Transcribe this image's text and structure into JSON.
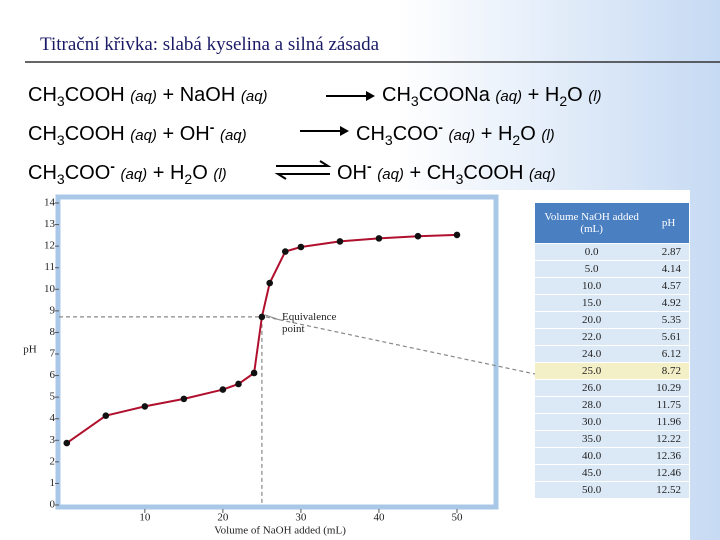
{
  "title": "Titrační křivka: slabá kyselina a silná zásada",
  "equations": [
    {
      "arrow": "single",
      "left": [
        {
          "text": "CH"
        },
        {
          "text": "3",
          "style": "sub"
        },
        {
          "text": "COOH "
        },
        {
          "text": "(aq)",
          "style": "i"
        },
        {
          "text": " + NaOH "
        },
        {
          "text": "(aq)",
          "style": "i"
        }
      ],
      "right": [
        {
          "text": "CH"
        },
        {
          "text": "3",
          "style": "sub"
        },
        {
          "text": "COONa "
        },
        {
          "text": "(aq)",
          "style": "i"
        },
        {
          "text": " + H"
        },
        {
          "text": "2",
          "style": "sub"
        },
        {
          "text": "O "
        },
        {
          "text": "(l)",
          "style": "i"
        }
      ]
    },
    {
      "arrow": "single",
      "left": [
        {
          "text": "CH"
        },
        {
          "text": "3",
          "style": "sub"
        },
        {
          "text": "COOH "
        },
        {
          "text": "(aq)",
          "style": "i"
        },
        {
          "text": " + OH"
        },
        {
          "text": "-",
          "style": "sup"
        },
        {
          "text": " "
        },
        {
          "text": "(aq)",
          "style": "i"
        }
      ],
      "right": [
        {
          "text": "CH"
        },
        {
          "text": "3",
          "style": "sub"
        },
        {
          "text": "COO"
        },
        {
          "text": "-",
          "style": "sup"
        },
        {
          "text": " "
        },
        {
          "text": "(aq)",
          "style": "i"
        },
        {
          "text": " + H"
        },
        {
          "text": "2",
          "style": "sub"
        },
        {
          "text": "O "
        },
        {
          "text": "(l)",
          "style": "i"
        }
      ]
    },
    {
      "arrow": "double",
      "left": [
        {
          "text": "CH"
        },
        {
          "text": "3",
          "style": "sub"
        },
        {
          "text": "COO"
        },
        {
          "text": "-",
          "style": "sup"
        },
        {
          "text": " "
        },
        {
          "text": "(aq)",
          "style": "i"
        },
        {
          "text": " + H"
        },
        {
          "text": "2",
          "style": "sub"
        },
        {
          "text": "O "
        },
        {
          "text": "(l)",
          "style": "i"
        }
      ],
      "right": [
        {
          "text": "OH"
        },
        {
          "text": "-",
          "style": "sup"
        },
        {
          "text": " "
        },
        {
          "text": "(aq)",
          "style": "i"
        },
        {
          "text": " + CH"
        },
        {
          "text": "3",
          "style": "sub"
        },
        {
          "text": "COOH "
        },
        {
          "text": "(aq)",
          "style": "i"
        }
      ]
    }
  ],
  "chart_data": {
    "type": "line",
    "x": [
      0,
      5,
      10,
      15,
      20,
      22,
      24,
      25,
      26,
      28,
      30,
      35,
      40,
      45,
      50
    ],
    "values": [
      2.87,
      4.14,
      4.57,
      4.92,
      5.35,
      5.61,
      6.12,
      8.72,
      10.29,
      11.75,
      11.96,
      12.22,
      12.36,
      12.46,
      12.52
    ],
    "color": "#b0102e",
    "xlabel": "Volume of NaOH added (mL)",
    "ylabel": "pH",
    "xlim": [
      -1,
      55
    ],
    "ylim": [
      0,
      14
    ],
    "xticks": [
      10,
      20,
      30,
      40,
      50
    ],
    "yticks": [
      0,
      1,
      2,
      3,
      4,
      5,
      6,
      7,
      8,
      9,
      10,
      11,
      12,
      13,
      14
    ],
    "annotation": {
      "text": "Equivalence point",
      "index": 7
    }
  },
  "table": {
    "header": [
      "Volume NaOH added (mL)",
      "pH"
    ],
    "rows": [
      [
        "0.0",
        "2.87"
      ],
      [
        "5.0",
        "4.14"
      ],
      [
        "10.0",
        "4.57"
      ],
      [
        "15.0",
        "4.92"
      ],
      [
        "20.0",
        "5.35"
      ],
      [
        "22.0",
        "5.61"
      ],
      [
        "24.0",
        "6.12"
      ],
      [
        "25.0",
        "8.72"
      ],
      [
        "26.0",
        "10.29"
      ],
      [
        "28.0",
        "11.75"
      ],
      [
        "30.0",
        "11.96"
      ],
      [
        "35.0",
        "12.22"
      ],
      [
        "40.0",
        "12.36"
      ],
      [
        "45.0",
        "12.46"
      ],
      [
        "50.0",
        "12.52"
      ]
    ],
    "highlight_row": 7
  }
}
